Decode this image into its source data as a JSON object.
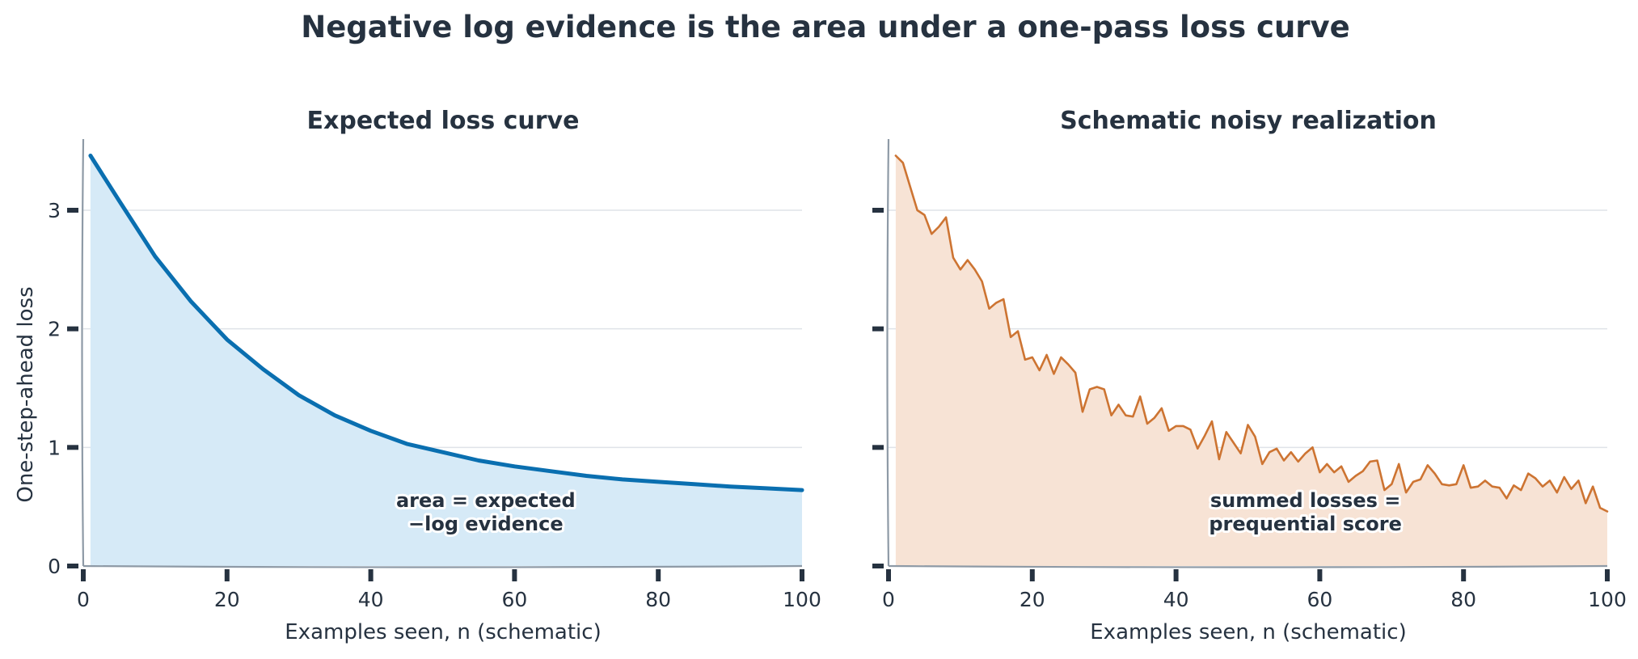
{
  "figure": {
    "title": "Negative log evidence is the area under a one-pass loss curve"
  },
  "chart_data": [
    {
      "type": "area",
      "title": "Expected loss curve",
      "xlabel": "Examples seen, n (schematic)",
      "ylabel": "One-step-ahead loss",
      "xlim": [
        0,
        100
      ],
      "ylim": [
        0,
        3.6
      ],
      "xticks": [
        0,
        20,
        40,
        60,
        80,
        100
      ],
      "yticks": [
        0,
        1,
        2,
        3
      ],
      "grid": "horizontal",
      "line_color": "#0a6fb0",
      "fill_color": "#d6eaf7",
      "annotation": {
        "lines": [
          "area = expected",
          "−log evidence"
        ],
        "x": 56,
        "y": 0.4
      },
      "series": [
        {
          "x": [
            1,
            5,
            10,
            15,
            20,
            25,
            30,
            35,
            40,
            45,
            50,
            55,
            60,
            65,
            70,
            75,
            80,
            85,
            90,
            95,
            100
          ],
          "y": [
            3.46,
            3.08,
            2.61,
            2.23,
            1.91,
            1.66,
            1.44,
            1.27,
            1.14,
            1.03,
            0.96,
            0.89,
            0.84,
            0.8,
            0.76,
            0.73,
            0.71,
            0.69,
            0.67,
            0.655,
            0.64
          ]
        }
      ]
    },
    {
      "type": "area",
      "title": "Schematic noisy realization",
      "xlabel": "Examples seen, n (schematic)",
      "ylabel": "",
      "xlim": [
        0,
        100
      ],
      "ylim": [
        0,
        3.6
      ],
      "xticks": [
        0,
        20,
        40,
        60,
        80,
        100
      ],
      "yticks": [
        0,
        1,
        2,
        3
      ],
      "show_ytick_labels": false,
      "grid": "horizontal",
      "line_color": "#cd7432",
      "fill_color": "#f7e3d5",
      "annotation": {
        "lines": [
          "summed losses =",
          "prequential score"
        ],
        "x": 58,
        "y": 0.4
      },
      "series": [
        {
          "x": [
            1,
            2,
            3,
            4,
            5,
            6,
            7,
            8,
            9,
            10,
            11,
            12,
            13,
            14,
            15,
            16,
            17,
            18,
            19,
            20,
            21,
            22,
            23,
            24,
            25,
            26,
            27,
            28,
            29,
            30,
            31,
            32,
            33,
            34,
            35,
            36,
            37,
            38,
            39,
            40,
            41,
            42,
            43,
            44,
            45,
            46,
            47,
            48,
            49,
            50,
            51,
            52,
            53,
            54,
            55,
            56,
            57,
            58,
            59,
            60,
            61,
            62,
            63,
            64,
            65,
            66,
            67,
            68,
            69,
            70,
            71,
            72,
            73,
            74,
            75,
            76,
            77,
            78,
            79,
            80,
            81,
            82,
            83,
            84,
            85,
            86,
            87,
            88,
            89,
            90,
            91,
            92,
            93,
            94,
            95,
            96,
            97,
            98,
            99,
            100
          ],
          "y": [
            3.46,
            3.4,
            3.2,
            3.0,
            2.96,
            2.8,
            2.86,
            2.94,
            2.6,
            2.5,
            2.58,
            2.5,
            2.4,
            2.17,
            2.22,
            2.25,
            1.93,
            1.98,
            1.74,
            1.76,
            1.65,
            1.78,
            1.62,
            1.76,
            1.7,
            1.63,
            1.3,
            1.49,
            1.51,
            1.49,
            1.27,
            1.36,
            1.27,
            1.26,
            1.43,
            1.2,
            1.25,
            1.33,
            1.14,
            1.18,
            1.18,
            1.15,
            0.99,
            1.1,
            1.22,
            0.9,
            1.13,
            1.04,
            0.95,
            1.19,
            1.09,
            0.86,
            0.96,
            0.99,
            0.89,
            0.96,
            0.88,
            0.95,
            1.0,
            0.79,
            0.86,
            0.79,
            0.84,
            0.71,
            0.76,
            0.8,
            0.88,
            0.89,
            0.64,
            0.69,
            0.86,
            0.62,
            0.71,
            0.73,
            0.85,
            0.78,
            0.69,
            0.68,
            0.69,
            0.85,
            0.66,
            0.67,
            0.72,
            0.67,
            0.66,
            0.57,
            0.68,
            0.64,
            0.78,
            0.74,
            0.67,
            0.72,
            0.62,
            0.75,
            0.65,
            0.72,
            0.53,
            0.67,
            0.49,
            0.46
          ]
        }
      ]
    }
  ]
}
